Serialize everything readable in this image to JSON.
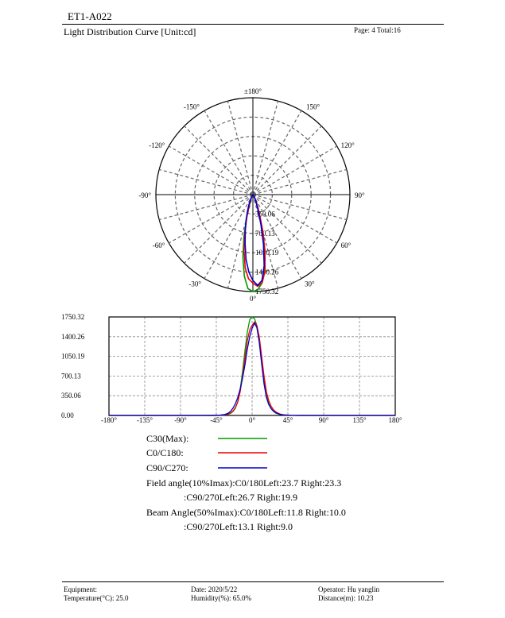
{
  "header": {
    "doc_id": "ET1-A022",
    "title": "Light Distribution Curve [Unit:cd]",
    "page_info": "Page: 4  Total:16"
  },
  "chart_data": [
    {
      "type": "polar",
      "angle_labels": [
        {
          "deg": 180,
          "label": "±180°"
        },
        {
          "deg": -150,
          "label": "-150°"
        },
        {
          "deg": 150,
          "label": "150°"
        },
        {
          "deg": -120,
          "label": "-120°"
        },
        {
          "deg": 120,
          "label": "120°"
        },
        {
          "deg": -90,
          "label": "-90°"
        },
        {
          "deg": 90,
          "label": "90°"
        },
        {
          "deg": -60,
          "label": "-60°"
        },
        {
          "deg": 60,
          "label": "60°"
        },
        {
          "deg": -30,
          "label": "-30°"
        },
        {
          "deg": 30,
          "label": "30°"
        },
        {
          "deg": 0,
          "label": "0°"
        }
      ],
      "radial_max": 1750.32,
      "radial_ticks": [
        350.06,
        700.13,
        1050.19,
        1400.26,
        1750.32
      ],
      "radial_labels": [
        "350.06",
        "700.13",
        "1050.19",
        "1400.26",
        "1750.32"
      ],
      "series": [
        {
          "name": "C30(Max)",
          "color": "#009900",
          "points": [
            [
              0,
              1750.32
            ],
            [
              3,
              1720
            ],
            [
              6,
              1600
            ],
            [
              9,
              1350
            ],
            [
              12,
              980
            ],
            [
              15,
              620
            ],
            [
              18,
              360
            ],
            [
              21,
              210
            ],
            [
              24,
              120
            ],
            [
              27,
              70
            ],
            [
              30,
              40
            ],
            [
              35,
              18
            ],
            [
              40,
              8
            ],
            [
              50,
              2
            ],
            [
              -3,
              1700
            ],
            [
              -6,
              1480
            ],
            [
              -9,
              1150
            ],
            [
              -12,
              780
            ],
            [
              -15,
              460
            ],
            [
              -18,
              250
            ],
            [
              -21,
              130
            ],
            [
              -24,
              70
            ],
            [
              -27,
              38
            ],
            [
              -30,
              20
            ],
            [
              -35,
              8
            ],
            [
              -40,
              3
            ],
            [
              -50,
              1
            ]
          ]
        },
        {
          "name": "C0/C180",
          "color": "#ee0000",
          "points": [
            [
              0,
              1600
            ],
            [
              3,
              1660
            ],
            [
              6,
              1600
            ],
            [
              9,
              1400
            ],
            [
              12,
              1050
            ],
            [
              15,
              700
            ],
            [
              18,
              420
            ],
            [
              21,
              260
            ],
            [
              24,
              160
            ],
            [
              27,
              100
            ],
            [
              30,
              60
            ],
            [
              35,
              25
            ],
            [
              40,
              10
            ],
            [
              50,
              2
            ],
            [
              -3,
              1520
            ],
            [
              -6,
              1330
            ],
            [
              -9,
              1020
            ],
            [
              -12,
              700
            ],
            [
              -15,
              420
            ],
            [
              -18,
              240
            ],
            [
              -21,
              140
            ],
            [
              -24,
              80
            ],
            [
              -27,
              45
            ],
            [
              -30,
              25
            ],
            [
              -35,
              10
            ],
            [
              -40,
              4
            ],
            [
              -50,
              1
            ]
          ]
        },
        {
          "name": "C90/C270",
          "color": "#0000cc",
          "points": [
            [
              0,
              1550
            ],
            [
              3,
              1640
            ],
            [
              6,
              1560
            ],
            [
              9,
              1300
            ],
            [
              12,
              920
            ],
            [
              15,
              560
            ],
            [
              18,
              320
            ],
            [
              21,
              190
            ],
            [
              24,
              120
            ],
            [
              27,
              75
            ],
            [
              30,
              45
            ],
            [
              35,
              20
            ],
            [
              40,
              8
            ],
            [
              50,
              2
            ],
            [
              -3,
              1400
            ],
            [
              -6,
              1180
            ],
            [
              -9,
              900
            ],
            [
              -12,
              660
            ],
            [
              -15,
              470
            ],
            [
              -18,
              320
            ],
            [
              -21,
              210
            ],
            [
              -24,
              130
            ],
            [
              -27,
              75
            ],
            [
              -30,
              40
            ],
            [
              -35,
              15
            ],
            [
              -40,
              6
            ],
            [
              -50,
              1
            ]
          ]
        }
      ]
    },
    {
      "type": "line",
      "xlim": [
        -180,
        180
      ],
      "ylim": [
        0,
        1750.32
      ],
      "x_ticks": [
        -180,
        -135,
        -90,
        -45,
        0,
        45,
        90,
        135,
        180
      ],
      "x_tick_labels": [
        "-180°",
        "-135°",
        "-90°",
        "-45°",
        "0°",
        "45°",
        "90°",
        "135°",
        "180°"
      ],
      "y_ticks": [
        0,
        350.06,
        700.13,
        1050.19,
        1400.26,
        1750.32
      ],
      "y_tick_labels": [
        "0.00",
        "350.06",
        "700.13",
        "1050.19",
        "1400.26",
        "1750.32"
      ],
      "grid": true,
      "series_ref": "polar"
    }
  ],
  "legend": {
    "items": [
      {
        "label": "C30(Max):",
        "color": "#009900"
      },
      {
        "label": "C0/C180:",
        "color": "#ee0000"
      },
      {
        "label": "C90/C270:",
        "color": "#0000cc"
      }
    ]
  },
  "info": {
    "field_angle_1": "Field angle(10%Imax):C0/180Left:23.7 Right:23.3",
    "field_angle_2": ":C90/270Left:26.7 Right:19.9",
    "beam_angle_1": "Beam Angle(50%Imax):C0/180Left:11.8 Right:10.0",
    "beam_angle_2": ":C90/270Left:13.1 Right:9.0"
  },
  "footer": {
    "equipment": "Equipment:",
    "temperature": "Temperature(°C): 25.0",
    "date": "Date: 2020/5/22",
    "humidity": "Humidity(%): 65.0%",
    "operator": "Operator: Hu yanglin",
    "distance": "Distance(m): 10.23"
  }
}
